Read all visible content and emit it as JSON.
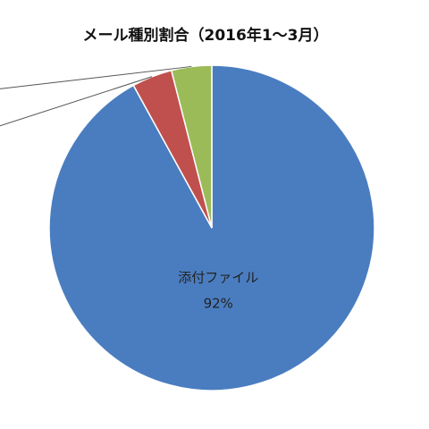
{
  "chart_data": {
    "type": "pie",
    "title": "メール種別割合（2016年1～3月）",
    "categories": [
      "添付ファイル",
      null,
      null
    ],
    "values": [
      92,
      4,
      4
    ],
    "value_labels": [
      "92%",
      null,
      null
    ],
    "colors": [
      "#4a7dc0",
      "#c0504d",
      "#9bbb59"
    ]
  }
}
